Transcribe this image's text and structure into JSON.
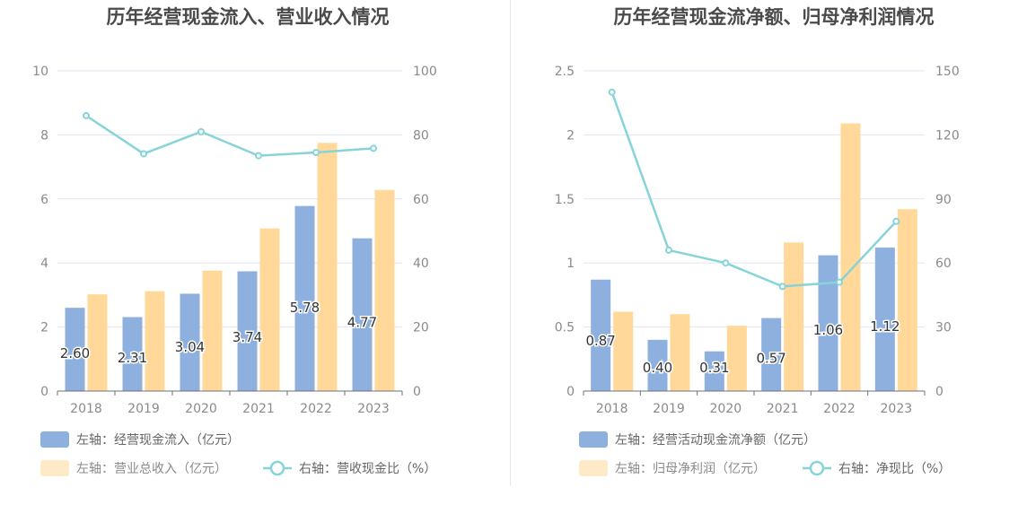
{
  "colors": {
    "bar_left": "#8eb0de",
    "bar_right": "#ffd89a",
    "line": "#86d4d8",
    "axis_text": "#8a8a8a",
    "grid": "#e3e5ef",
    "title": "#4a4a4a",
    "legend_text": "#666666"
  },
  "chart_data": [
    {
      "type": "bar",
      "title": "历年经营现金流入、营业收入情况",
      "categories": [
        "2018",
        "2019",
        "2020",
        "2021",
        "2022",
        "2023"
      ],
      "y_left_ticks": [
        "0",
        "2",
        "4",
        "6",
        "8",
        "10"
      ],
      "y_right_ticks": [
        "0",
        "20",
        "40",
        "60",
        "80",
        "100"
      ],
      "ylim_left": [
        0,
        10
      ],
      "ylim_right": [
        0,
        100
      ],
      "grid": true,
      "legend_position": "bottom-left",
      "series": [
        {
          "name": "左轴：经营现金流入（亿元）",
          "type": "bar",
          "axis": "left",
          "values": [
            2.6,
            2.31,
            3.04,
            3.74,
            5.78,
            4.77
          ],
          "labels": [
            "2.60",
            "2.31",
            "3.04",
            "3.74",
            "5.78",
            "4.77"
          ]
        },
        {
          "name": "左轴：营业总收入（亿元）",
          "type": "bar",
          "axis": "left",
          "values": [
            3.02,
            3.12,
            3.76,
            5.08,
            7.75,
            6.28
          ]
        },
        {
          "name": "右轴：营收现金比（%）",
          "type": "line",
          "axis": "right",
          "values": [
            86.0,
            74.1,
            81.0,
            73.5,
            74.5,
            75.8
          ]
        }
      ]
    },
    {
      "type": "bar",
      "title": "历年经营现金流净额、归母净利润情况",
      "categories": [
        "2018",
        "2019",
        "2020",
        "2021",
        "2022",
        "2023"
      ],
      "y_left_ticks": [
        "0",
        "0.5",
        "1",
        "1.5",
        "2",
        "2.5"
      ],
      "y_right_ticks": [
        "0",
        "30",
        "60",
        "90",
        "120",
        "150"
      ],
      "ylim_left": [
        0,
        2.5
      ],
      "ylim_right": [
        0,
        150
      ],
      "grid": true,
      "legend_position": "bottom-left",
      "series": [
        {
          "name": "左轴：经营活动现金流净额（亿元）",
          "type": "bar",
          "axis": "left",
          "values": [
            0.87,
            0.4,
            0.31,
            0.57,
            1.06,
            1.12
          ],
          "labels": [
            "0.87",
            "0.40",
            "0.31",
            "0.57",
            "1.06",
            "1.12"
          ]
        },
        {
          "name": "左轴：归母净利润（亿元）",
          "type": "bar",
          "axis": "left",
          "values": [
            0.62,
            0.6,
            0.51,
            1.16,
            2.09,
            1.42
          ]
        },
        {
          "name": "右轴：净现比（%）",
          "type": "line",
          "axis": "right",
          "values": [
            140.0,
            66.0,
            60.0,
            49.0,
            51.0,
            79.5
          ]
        }
      ]
    }
  ]
}
